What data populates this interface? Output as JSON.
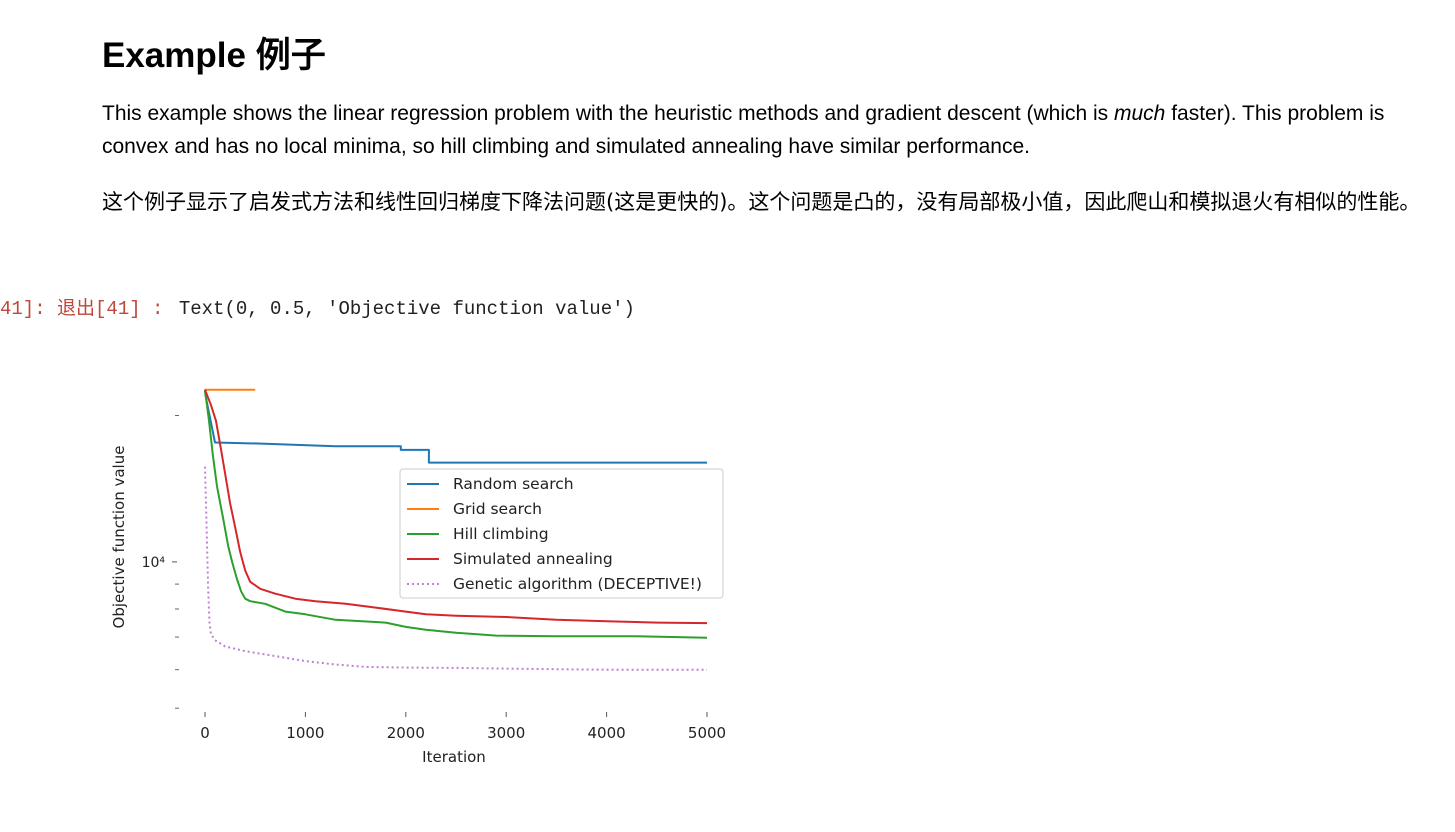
{
  "cell": {
    "heading": "Example 例子",
    "para_en_1": "This example shows the linear regression problem with the heuristic methods and gradient descent (which is ",
    "para_en_em": "much",
    "para_en_2": " faster). This problem is convex and has no local minima, so hill climbing and simulated annealing have similar performance.",
    "para_zh": "这个例子显示了启发式方法和线性回归梯度下降法问题(这是更快的)。这个问题是凸的，没有局部极小值，因此爬山和模拟退火有相似的性能。",
    "output_prompt": "41]: 退出[41] : ",
    "output_text": "Text(0, 0.5, 'Objective function value')"
  },
  "chart_data": {
    "type": "line",
    "xlabel": "Iteration",
    "ylabel": "Objective function value",
    "y_scale": "log",
    "xlim": [
      0,
      5000
    ],
    "ylim": [
      5000,
      30000
    ],
    "x_ticks": [
      0,
      1000,
      2000,
      3000,
      4000,
      5000
    ],
    "x_tick_labels": [
      "0",
      "1000",
      "2000",
      "3000",
      "4000",
      "5000"
    ],
    "y_tick_label": "10⁴",
    "y_tick_value": 10000,
    "legend_placement": "center-right",
    "grid": false,
    "series": [
      {
        "name": "Random search",
        "color": "#1f77b4",
        "style": "solid",
        "points": [
          [
            0,
            22600
          ],
          [
            5,
            22000
          ],
          [
            100,
            17600
          ],
          [
            600,
            17500
          ],
          [
            1300,
            17300
          ],
          [
            1950,
            17300
          ],
          [
            1950,
            17000
          ],
          [
            2230,
            17000
          ],
          [
            2230,
            16000
          ],
          [
            5000,
            16000
          ]
        ]
      },
      {
        "name": "Grid search",
        "color": "#ff7f0e",
        "style": "solid",
        "points": [
          [
            0,
            22600
          ],
          [
            500,
            22600
          ]
        ]
      },
      {
        "name": "Hill climbing",
        "color": "#2ca02c",
        "style": "solid",
        "points": [
          [
            0,
            22600
          ],
          [
            40,
            19500
          ],
          [
            80,
            16500
          ],
          [
            120,
            14300
          ],
          [
            180,
            12300
          ],
          [
            230,
            10800
          ],
          [
            270,
            10000
          ],
          [
            320,
            9200
          ],
          [
            360,
            8700
          ],
          [
            400,
            8400
          ],
          [
            450,
            8300
          ],
          [
            600,
            8200
          ],
          [
            800,
            7900
          ],
          [
            1000,
            7800
          ],
          [
            1300,
            7600
          ],
          [
            1800,
            7500
          ],
          [
            2000,
            7350
          ],
          [
            2200,
            7250
          ],
          [
            2500,
            7150
          ],
          [
            2900,
            7050
          ],
          [
            3500,
            7030
          ],
          [
            4300,
            7030
          ],
          [
            5000,
            6980
          ]
        ]
      },
      {
        "name": "Simulated annealing",
        "color": "#d62728",
        "style": "solid",
        "points": [
          [
            0,
            22600
          ],
          [
            60,
            21000
          ],
          [
            110,
            19500
          ],
          [
            160,
            17000
          ],
          [
            200,
            15200
          ],
          [
            250,
            13200
          ],
          [
            300,
            11800
          ],
          [
            350,
            10500
          ],
          [
            400,
            9600
          ],
          [
            450,
            9100
          ],
          [
            550,
            8800
          ],
          [
            700,
            8600
          ],
          [
            900,
            8400
          ],
          [
            1100,
            8300
          ],
          [
            1400,
            8200
          ],
          [
            1700,
            8050
          ],
          [
            2000,
            7900
          ],
          [
            2200,
            7800
          ],
          [
            2500,
            7750
          ],
          [
            3000,
            7700
          ],
          [
            3500,
            7600
          ],
          [
            4000,
            7550
          ],
          [
            4500,
            7500
          ],
          [
            5000,
            7480
          ]
        ]
      },
      {
        "name": "Genetic algorithm (DECEPTIVE!)",
        "color": "#c27fd6",
        "style": "dotted",
        "points": [
          [
            0,
            15700
          ],
          [
            15,
            12000
          ],
          [
            30,
            9000
          ],
          [
            45,
            7500
          ],
          [
            60,
            7100
          ],
          [
            100,
            6900
          ],
          [
            200,
            6700
          ],
          [
            400,
            6550
          ],
          [
            600,
            6450
          ],
          [
            800,
            6350
          ],
          [
            1000,
            6250
          ],
          [
            1300,
            6150
          ],
          [
            1600,
            6080
          ],
          [
            2000,
            6060
          ],
          [
            2500,
            6050
          ],
          [
            3300,
            6020
          ],
          [
            4000,
            6000
          ],
          [
            5000,
            6000
          ]
        ]
      }
    ]
  }
}
